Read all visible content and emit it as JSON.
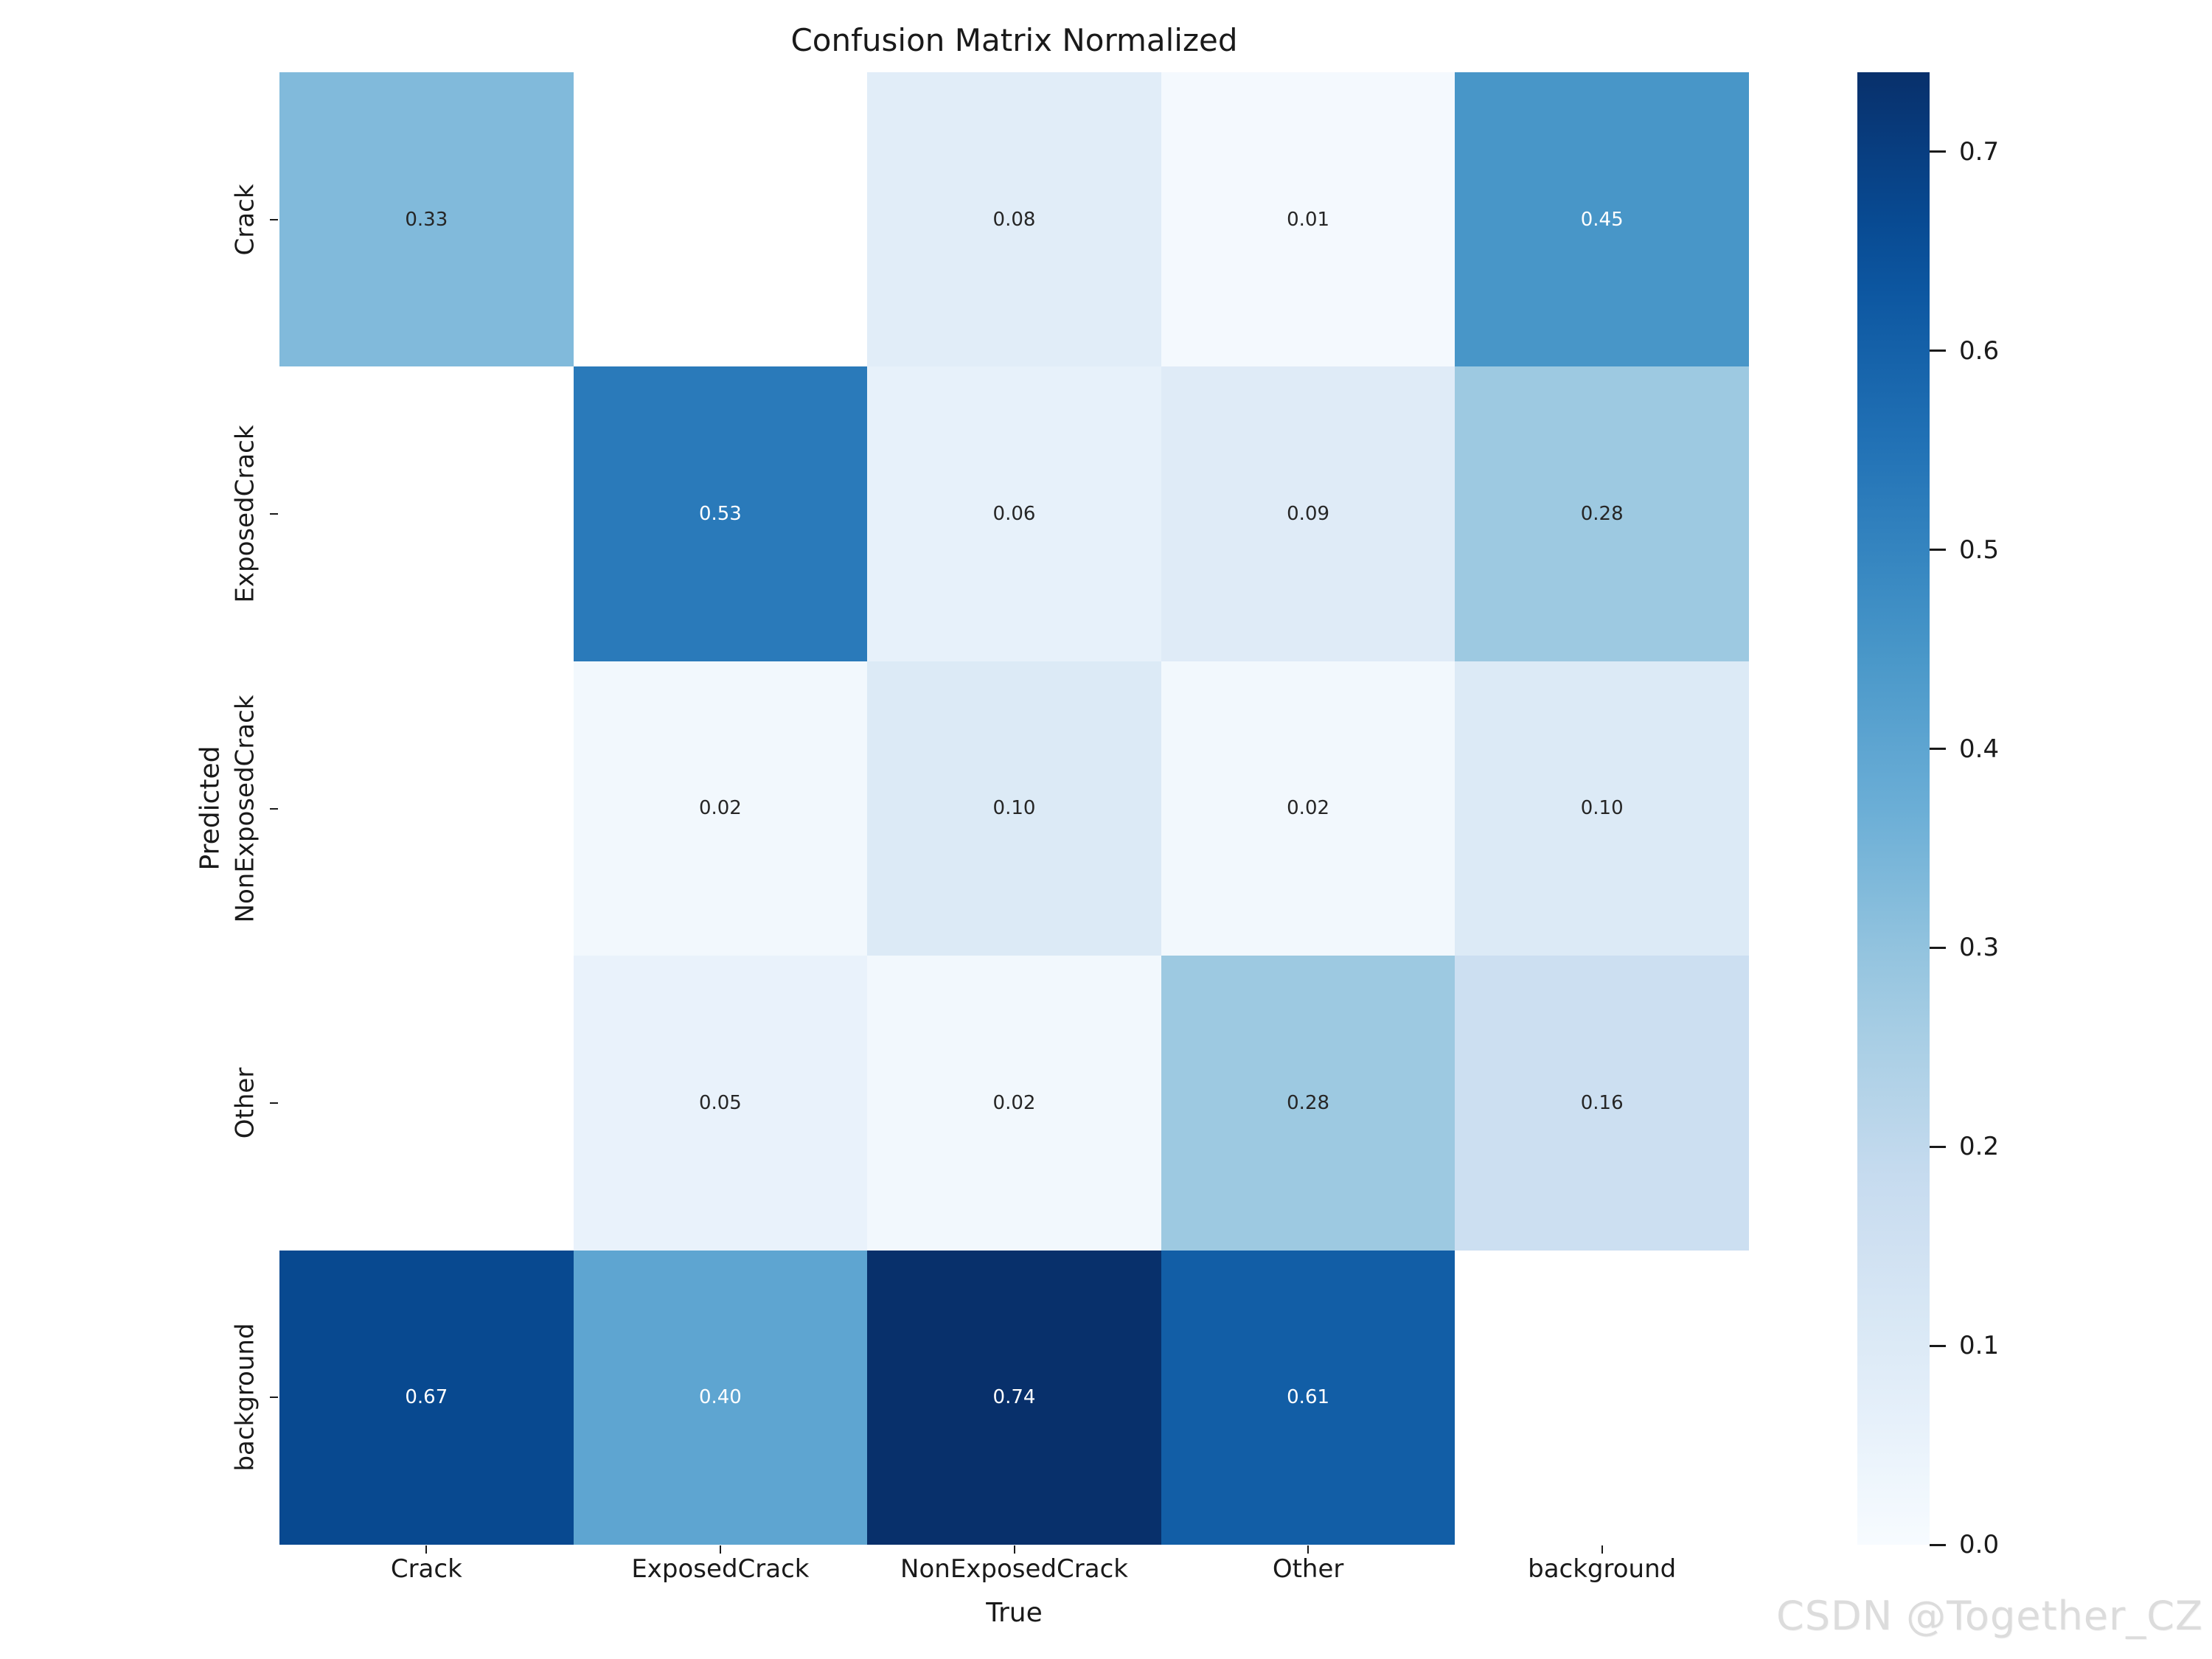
{
  "figure": {
    "background": "#ffffff",
    "watermark": "CSDN @Together_CZ"
  },
  "chart_data": {
    "type": "heatmap",
    "title": "Confusion Matrix Normalized",
    "xlabel": "True",
    "ylabel": "Predicted",
    "x_categories": [
      "Crack",
      "ExposedCrack",
      "NonExposedCrack",
      "Other",
      "background"
    ],
    "y_categories": [
      "Crack",
      "ExposedCrack",
      "NonExposedCrack",
      "Other",
      "background"
    ],
    "rows": [
      {
        "predicted": "Crack",
        "values": [
          0.33,
          null,
          0.08,
          0.01,
          0.45
        ]
      },
      {
        "predicted": "ExposedCrack",
        "values": [
          null,
          0.53,
          0.06,
          0.09,
          0.28
        ]
      },
      {
        "predicted": "NonExposedCrack",
        "values": [
          null,
          0.02,
          0.1,
          0.02,
          0.1
        ]
      },
      {
        "predicted": "Other",
        "values": [
          null,
          0.05,
          0.02,
          0.28,
          0.16
        ]
      },
      {
        "predicted": "background",
        "values": [
          0.67,
          0.4,
          0.74,
          0.61,
          null
        ]
      }
    ],
    "grid_on": false,
    "legend_position": "none",
    "colormap": {
      "name": "Blues",
      "anchors": [
        "#f7fbff",
        "#deebf7",
        "#c6dbef",
        "#9ecae1",
        "#6baed6",
        "#4292c6",
        "#2171b5",
        "#08519c",
        "#08306b"
      ]
    },
    "colorbar": {
      "vmin": 0.0,
      "vmax": 0.74,
      "tick_values": [
        0.7,
        0.6,
        0.5,
        0.4,
        0.3,
        0.2,
        0.1,
        0.0
      ],
      "tick_labels": [
        "0.7",
        "0.6",
        "0.5",
        "0.4",
        "0.3",
        "0.2",
        "0.1",
        "0.0"
      ]
    },
    "null_cell_color": "#ffffff",
    "annotation_text_dark": "#262626",
    "annotation_text_light": "#ffffff"
  }
}
